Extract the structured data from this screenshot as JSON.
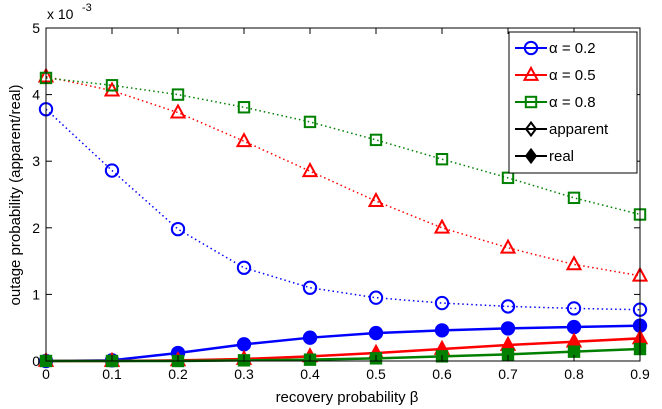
{
  "chart_data": {
    "type": "line",
    "xlabel": "recovery probability β",
    "ylabel": "outage probability (apparent/real)",
    "y_exponent_label": "x 10",
    "y_exponent_power": "-3",
    "xlim": [
      0,
      0.9
    ],
    "ylim": [
      0,
      0.005
    ],
    "x_ticks": [
      "0",
      "0.1",
      "0.2",
      "0.3",
      "0.4",
      "0.5",
      "0.6",
      "0.7",
      "0.8",
      "0.9"
    ],
    "y_ticks": [
      "0",
      "1",
      "2",
      "3",
      "4",
      "5"
    ],
    "x": [
      0,
      0.1,
      0.2,
      0.3,
      0.4,
      0.5,
      0.6,
      0.7,
      0.8,
      0.9
    ],
    "grid": false,
    "legend_position": "top-right",
    "legend": [
      {
        "label": "α = 0.2",
        "marker": "circle",
        "color": "#0000ff",
        "line": "solid"
      },
      {
        "label": "α = 0.5",
        "marker": "triangle",
        "color": "#ff0000",
        "line": "solid"
      },
      {
        "label": "α = 0.8",
        "marker": "square",
        "color": "#008000",
        "line": "solid"
      },
      {
        "label": "apparent",
        "marker": "diamond-open",
        "color": "#000000",
        "line": "solid"
      },
      {
        "label": "real",
        "marker": "diamond-filled",
        "color": "#000000",
        "line": "solid"
      }
    ],
    "series": [
      {
        "alpha": "0.2",
        "kind": "apparent",
        "color": "#0000ff",
        "marker": "circle",
        "filled": false,
        "dash": "dotted",
        "values": [
          0.00378,
          0.00286,
          0.00198,
          0.0014,
          0.0011,
          0.00095,
          0.00087,
          0.00082,
          0.00079,
          0.00077
        ]
      },
      {
        "alpha": "0.5",
        "kind": "apparent",
        "color": "#ff0000",
        "marker": "triangle",
        "filled": false,
        "dash": "dotted",
        "values": [
          0.00427,
          0.00406,
          0.00373,
          0.0033,
          0.00285,
          0.0024,
          0.002,
          0.0017,
          0.00145,
          0.00128
        ]
      },
      {
        "alpha": "0.8",
        "kind": "apparent",
        "color": "#008000",
        "marker": "square",
        "filled": false,
        "dash": "dotted",
        "values": [
          0.00425,
          0.00414,
          0.004,
          0.00381,
          0.00359,
          0.00332,
          0.00303,
          0.00275,
          0.00245,
          0.0022
        ]
      },
      {
        "alpha": "0.2",
        "kind": "real",
        "color": "#0000ff",
        "marker": "circle",
        "filled": true,
        "dash": "solid",
        "values": [
          0.0,
          1e-05,
          0.00012,
          0.00025,
          0.00035,
          0.00042,
          0.00046,
          0.00049,
          0.00051,
          0.00053
        ]
      },
      {
        "alpha": "0.5",
        "kind": "real",
        "color": "#ff0000",
        "marker": "triangle",
        "filled": true,
        "dash": "solid",
        "values": [
          0.0,
          0.0,
          1e-05,
          3e-05,
          7e-05,
          0.00012,
          0.00018,
          0.00024,
          0.00029,
          0.00034
        ]
      },
      {
        "alpha": "0.8",
        "kind": "real",
        "color": "#008000",
        "marker": "square",
        "filled": true,
        "dash": "solid",
        "values": [
          0.0,
          0.0,
          0.0,
          1e-05,
          2e-05,
          4e-05,
          7e-05,
          0.0001,
          0.00014,
          0.00018
        ]
      }
    ]
  }
}
